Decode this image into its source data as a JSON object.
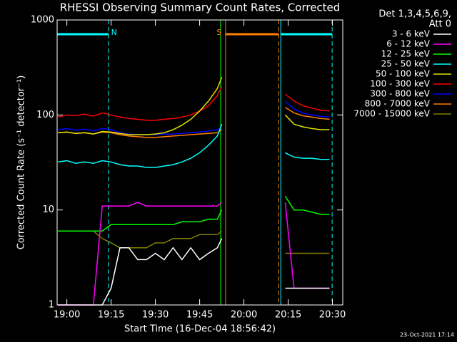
{
  "chart_data": {
    "type": "line",
    "title": "RHESSI Observing Summary Count Rates, Corrected",
    "xlabel": "Start Time (16-Dec-04 18:56:42)",
    "ylabel": "Corrected Count Rate (s⁻¹ detector⁻¹)",
    "legend_title": [
      "Det 1,3,4,5,6,9,",
      "Att 0"
    ],
    "footer": "23-Oct-2021 17:14",
    "log_y": true,
    "xlim": [
      -3.3,
      93.5
    ],
    "ylim": [
      1,
      1000
    ],
    "xticks": [
      {
        "value": 0,
        "label": "19:00"
      },
      {
        "value": 15,
        "label": "19:15"
      },
      {
        "value": 30,
        "label": "19:30"
      },
      {
        "value": 45,
        "label": "19:45"
      },
      {
        "value": 60,
        "label": "20:00"
      },
      {
        "value": 75,
        "label": "20:15"
      },
      {
        "value": 90,
        "label": "20:30"
      }
    ],
    "yticks": [
      1,
      10,
      100,
      1000
    ],
    "x": [
      -3,
      0,
      3,
      6,
      9,
      12,
      15,
      18,
      21,
      24,
      27,
      30,
      33,
      36,
      39,
      42,
      45,
      48,
      51,
      52.5,
      60,
      74,
      77,
      80,
      83,
      86,
      89
    ],
    "series": [
      {
        "name": "3 - 6 keV",
        "color": "#ffffff",
        "values": [
          1,
          1,
          1,
          1,
          1,
          1,
          1.5,
          4,
          4,
          3,
          3,
          3.5,
          3,
          4,
          3,
          4,
          3,
          3.5,
          4,
          5,
          null,
          1.5,
          1.5,
          1.5,
          1.5,
          1.5,
          1.5
        ]
      },
      {
        "name": "6 - 12 keV",
        "color": "#ff00ff",
        "values": [
          1,
          1,
          1,
          1,
          1,
          11,
          11,
          11,
          11,
          12,
          11,
          11,
          11,
          11,
          11,
          11,
          11,
          11,
          11,
          12,
          null,
          12,
          1.5,
          1.5,
          1.5,
          1.5,
          1.5
        ]
      },
      {
        "name": "12 - 25 keV",
        "color": "#00ff00",
        "values": [
          6,
          6,
          6,
          6,
          6,
          6,
          7,
          7,
          7,
          7,
          7,
          7,
          7,
          7,
          7.5,
          7.5,
          7.5,
          8,
          8,
          10,
          null,
          14,
          10,
          10,
          9.5,
          9,
          9
        ]
      },
      {
        "name": "25 - 50 keV",
        "color": "#00ffff",
        "values": [
          32,
          33,
          31,
          32,
          31,
          33,
          32,
          30,
          29,
          29,
          28,
          28,
          29,
          30,
          32,
          35,
          40,
          48,
          60,
          80,
          null,
          40,
          36,
          35,
          35,
          34,
          34
        ]
      },
      {
        "name": "50 - 100 keV",
        "color": "#e0e000",
        "values": [
          65,
          66,
          64,
          65,
          63,
          67,
          66,
          64,
          62,
          62,
          62,
          63,
          65,
          70,
          78,
          90,
          110,
          140,
          190,
          250,
          null,
          100,
          80,
          75,
          72,
          70,
          70
        ]
      },
      {
        "name": "100 - 300 keV",
        "color": "#ff0000",
        "values": [
          95,
          100,
          98,
          102,
          97,
          105,
          100,
          95,
          92,
          90,
          88,
          88,
          90,
          92,
          95,
          100,
          110,
          125,
          160,
          200,
          null,
          165,
          140,
          125,
          118,
          112,
          110
        ]
      },
      {
        "name": "300 - 800 keV",
        "color": "#0000ff",
        "values": [
          70,
          72,
          69,
          71,
          68,
          72,
          70,
          65,
          63,
          62,
          62,
          62,
          63,
          63,
          64,
          65,
          66,
          68,
          70,
          75,
          null,
          140,
          115,
          105,
          100,
          97,
          95
        ]
      },
      {
        "name": "800 - 7000 keV",
        "color": "#ff8000",
        "values": [
          65,
          66,
          64,
          65,
          63,
          66,
          65,
          62,
          60,
          59,
          58,
          58,
          59,
          60,
          61,
          62,
          63,
          64,
          65,
          70,
          null,
          120,
          105,
          98,
          95,
          92,
          90
        ]
      },
      {
        "name": "7000 - 15000 keV",
        "color": "#808000",
        "values": [
          6,
          6,
          6,
          6,
          6,
          5,
          4.5,
          4,
          4,
          4,
          4,
          4.5,
          4.5,
          5,
          5,
          5,
          5.5,
          5.5,
          5.5,
          6,
          null,
          3.5,
          3.5,
          3.5,
          3.5,
          3.5,
          3.5
        ]
      }
    ],
    "intervals": [
      {
        "x": [
          -3.3,
          14.1
        ],
        "color": "#00ffff"
      },
      {
        "x": [
          53.8,
          71.8
        ],
        "color": "#ff8000"
      },
      {
        "x": [
          72.5,
          89.9
        ],
        "color": "#00ffff"
      }
    ],
    "markers": [
      {
        "x": 14.1,
        "color": "#00ffff",
        "dashed": true
      },
      {
        "x": 52.1,
        "color": "#00ff00",
        "dashed": false
      },
      {
        "x": 53.8,
        "color": "#ff8000",
        "dashed": false
      },
      {
        "x": 71.8,
        "color": "#ff8000",
        "dashed": true
      },
      {
        "x": 72.5,
        "color": "#00ffff",
        "dashed": false
      },
      {
        "x": 89.9,
        "color": "#00ffff",
        "dashed": true
      }
    ],
    "annotations": [
      {
        "text": "N",
        "x": 16,
        "color": "#00ffff"
      },
      {
        "text": "S",
        "x": 51.6,
        "color": "#ff8000"
      }
    ]
  }
}
